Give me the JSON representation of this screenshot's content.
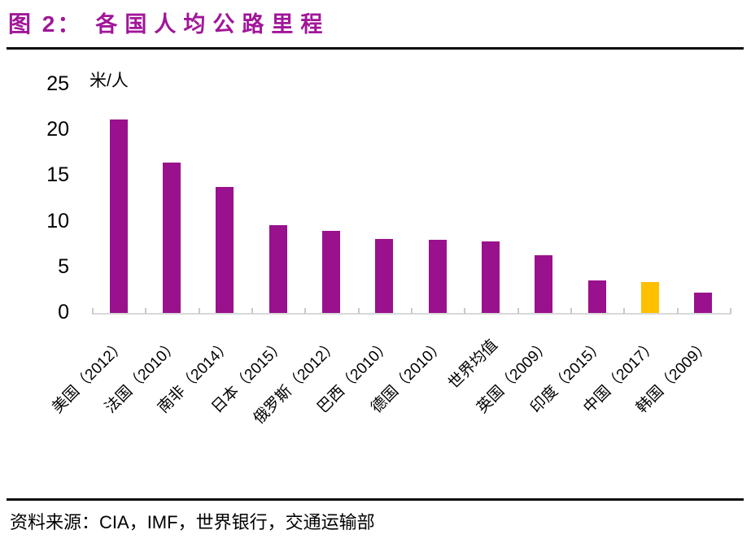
{
  "header": {
    "figure_label": "图 2：",
    "title": "各国人均公路里程",
    "accent_color": "#A11699"
  },
  "chart_data": {
    "type": "bar",
    "title": "各国人均公路里程",
    "unit_label": "米/人",
    "categories": [
      "美国（2012）",
      "法国（2010）",
      "南非（2014）",
      "日本（2015）",
      "俄罗斯（2012）",
      "巴西（2010）",
      "德国（2010）",
      "世界均值",
      "英国（2009）",
      "印度（2015）",
      "中国（2017）",
      "韩国（2009）"
    ],
    "values": [
      21.2,
      16.5,
      13.8,
      9.6,
      9.0,
      8.1,
      8.0,
      7.8,
      6.3,
      3.6,
      3.4,
      2.2
    ],
    "highlight_index": 10,
    "highlight_category": "中国（2017）",
    "colors": {
      "bar": "#99118C",
      "highlight": "#FFC000",
      "axis": "#D9D9D9",
      "tick": "#C9C9C9"
    },
    "ylim": [
      0,
      25
    ],
    "yticks": [
      0,
      5,
      10,
      15,
      20,
      25
    ],
    "grid": false,
    "legend": "none",
    "xlabel_rotation_deg": -45
  },
  "footer": {
    "source_label": "资料来源：",
    "source_orgs_latin": "CIA，IMF，",
    "source_orgs_cn": "世界银行，交通运输部"
  }
}
